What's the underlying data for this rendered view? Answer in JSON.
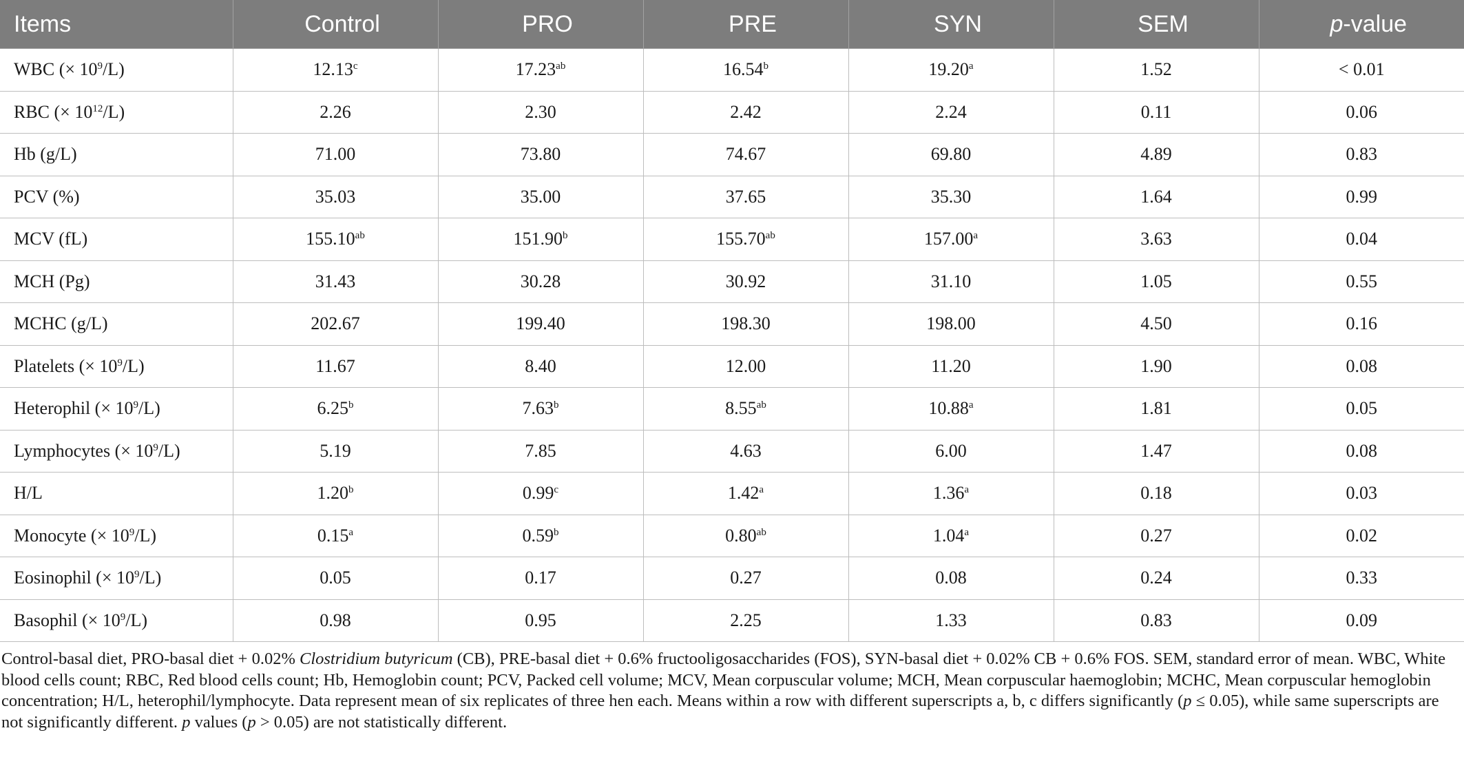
{
  "table": {
    "headers": [
      "Items",
      "Control",
      "PRO",
      "PRE",
      "SYN",
      "SEM",
      "-value"
    ],
    "p_prefix": "p",
    "rows": [
      {
        "item": "WBC (× 10",
        "exp": "9",
        "unit": "/L)",
        "cells": [
          [
            "12.13",
            "c"
          ],
          [
            "17.23",
            "ab"
          ],
          [
            "16.54",
            "b"
          ],
          [
            "19.20",
            "a"
          ],
          [
            "1.52",
            ""
          ],
          [
            "< 0.01",
            ""
          ]
        ]
      },
      {
        "item": "RBC (× 10",
        "exp": "12",
        "unit": "/L)",
        "cells": [
          [
            "2.26",
            ""
          ],
          [
            "2.30",
            ""
          ],
          [
            "2.42",
            ""
          ],
          [
            "2.24",
            ""
          ],
          [
            "0.11",
            ""
          ],
          [
            "0.06",
            ""
          ]
        ]
      },
      {
        "item": "Hb (g/L)",
        "exp": "",
        "unit": "",
        "cells": [
          [
            "71.00",
            ""
          ],
          [
            "73.80",
            ""
          ],
          [
            "74.67",
            ""
          ],
          [
            "69.80",
            ""
          ],
          [
            "4.89",
            ""
          ],
          [
            "0.83",
            ""
          ]
        ]
      },
      {
        "item": "PCV (%)",
        "exp": "",
        "unit": "",
        "cells": [
          [
            "35.03",
            ""
          ],
          [
            "35.00",
            ""
          ],
          [
            "37.65",
            ""
          ],
          [
            "35.30",
            ""
          ],
          [
            "1.64",
            ""
          ],
          [
            "0.99",
            ""
          ]
        ]
      },
      {
        "item": "MCV (fL)",
        "exp": "",
        "unit": "",
        "cells": [
          [
            "155.10",
            "ab"
          ],
          [
            "151.90",
            "b"
          ],
          [
            "155.70",
            "ab"
          ],
          [
            "157.00",
            "a"
          ],
          [
            "3.63",
            ""
          ],
          [
            "0.04",
            ""
          ]
        ]
      },
      {
        "item": "MCH (Pg)",
        "exp": "",
        "unit": "",
        "cells": [
          [
            "31.43",
            ""
          ],
          [
            "30.28",
            ""
          ],
          [
            "30.92",
            ""
          ],
          [
            "31.10",
            ""
          ],
          [
            "1.05",
            ""
          ],
          [
            "0.55",
            ""
          ]
        ]
      },
      {
        "item": "MCHC (g/L)",
        "exp": "",
        "unit": "",
        "cells": [
          [
            "202.67",
            ""
          ],
          [
            "199.40",
            ""
          ],
          [
            "198.30",
            ""
          ],
          [
            "198.00",
            ""
          ],
          [
            "4.50",
            ""
          ],
          [
            "0.16",
            ""
          ]
        ]
      },
      {
        "item": "Platelets (× 10",
        "exp": "9",
        "unit": "/L)",
        "cells": [
          [
            "11.67",
            ""
          ],
          [
            "8.40",
            ""
          ],
          [
            "12.00",
            ""
          ],
          [
            "11.20",
            ""
          ],
          [
            "1.90",
            ""
          ],
          [
            "0.08",
            ""
          ]
        ]
      },
      {
        "item": "Heterophil (× 10",
        "exp": "9",
        "unit": "/L)",
        "cells": [
          [
            "6.25",
            "b"
          ],
          [
            "7.63",
            "b"
          ],
          [
            "8.55",
            "ab"
          ],
          [
            "10.88",
            "a"
          ],
          [
            "1.81",
            ""
          ],
          [
            "0.05",
            ""
          ]
        ]
      },
      {
        "item": "Lymphocytes (× 10",
        "exp": "9",
        "unit": "/L)",
        "cells": [
          [
            "5.19",
            ""
          ],
          [
            "7.85",
            ""
          ],
          [
            "4.63",
            ""
          ],
          [
            "6.00",
            ""
          ],
          [
            "1.47",
            ""
          ],
          [
            "0.08",
            ""
          ]
        ]
      },
      {
        "item": "H/L",
        "exp": "",
        "unit": "",
        "cells": [
          [
            "1.20",
            "b"
          ],
          [
            "0.99",
            "c"
          ],
          [
            "1.42",
            "a"
          ],
          [
            "1.36",
            "a"
          ],
          [
            "0.18",
            ""
          ],
          [
            "0.03",
            ""
          ]
        ]
      },
      {
        "item": "Monocyte (× 10",
        "exp": "9",
        "unit": "/L)",
        "cells": [
          [
            "0.15",
            "a"
          ],
          [
            "0.59",
            "b"
          ],
          [
            "0.80",
            "ab"
          ],
          [
            "1.04",
            "a"
          ],
          [
            "0.27",
            ""
          ],
          [
            "0.02",
            ""
          ]
        ]
      },
      {
        "item": "Eosinophil (× 10",
        "exp": "9",
        "unit": "/L)",
        "cells": [
          [
            "0.05",
            ""
          ],
          [
            "0.17",
            ""
          ],
          [
            "0.27",
            ""
          ],
          [
            "0.08",
            ""
          ],
          [
            "0.24",
            ""
          ],
          [
            "0.33",
            ""
          ]
        ]
      },
      {
        "item": "Basophil (× 10",
        "exp": "9",
        "unit": "/L)",
        "cells": [
          [
            "0.98",
            ""
          ],
          [
            "0.95",
            ""
          ],
          [
            "2.25",
            ""
          ],
          [
            "1.33",
            ""
          ],
          [
            "0.83",
            ""
          ],
          [
            "0.09",
            ""
          ]
        ]
      }
    ]
  },
  "footnote": [
    {
      "t": "Control-basal diet, PRO-basal diet + 0.02% ",
      "i": false
    },
    {
      "t": "Clostridium butyricum",
      "i": true
    },
    {
      "t": " (CB), PRE-basal diet + 0.6% fructooligosaccharides (FOS), SYN-basal diet + 0.02% CB + 0.6% FOS. SEM, standard error of mean. WBC, White blood cells count; RBC, Red blood cells count; Hb, Hemoglobin count; PCV, Packed cell volume; MCV, Mean corpuscular volume; MCH, Mean corpuscular haemoglobin; MCHC, Mean corpuscular hemoglobin concentration; H/L, heterophil/lymphocyte. Data represent mean of six replicates of three hen each. Means within a row with different superscripts a, b, c differs significantly (",
      "i": false
    },
    {
      "t": "p",
      "i": true
    },
    {
      "t": " ≤ 0.05), while same superscripts are not significantly different. ",
      "i": false
    },
    {
      "t": "p",
      "i": true
    },
    {
      "t": " values (",
      "i": false
    },
    {
      "t": "p",
      "i": true
    },
    {
      "t": " > 0.05) are not statistically different.",
      "i": false
    }
  ]
}
